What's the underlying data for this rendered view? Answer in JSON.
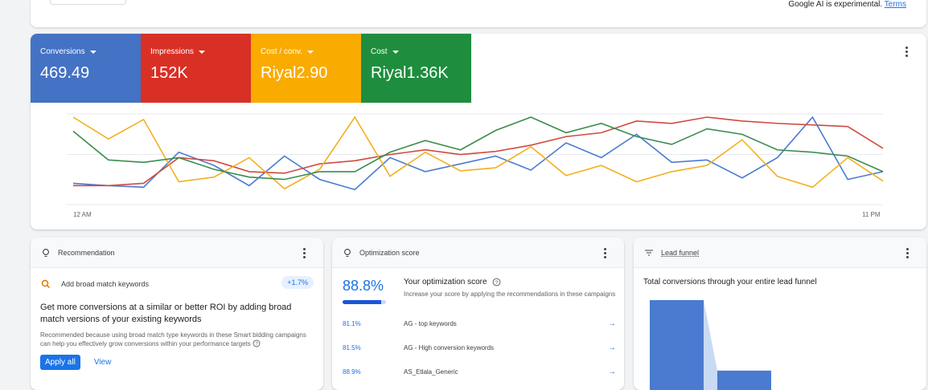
{
  "top": {
    "note": "Google AI is experimental.",
    "terms_link": "Terms"
  },
  "metrics": [
    {
      "label": "Conversions",
      "value": "469.49",
      "color": "#4472c4"
    },
    {
      "label": "Impressions",
      "value": "152K",
      "color": "#d93025"
    },
    {
      "label": "Cost / conv.",
      "value": "Riyal2.90",
      "color": "#f9ab00"
    },
    {
      "label": "Cost",
      "value": "Riyal1.36K",
      "color": "#1e8e3e"
    }
  ],
  "chart_data": {
    "type": "line",
    "x_start_label": "12 AM",
    "x_end_label": "11 PM",
    "x": [
      0,
      1,
      2,
      3,
      4,
      5,
      6,
      7,
      8,
      9,
      10,
      11,
      12,
      13,
      14,
      15,
      16,
      17,
      18,
      19,
      20,
      21,
      22,
      23
    ],
    "ylim": [
      0,
      1
    ],
    "grid": true,
    "series": [
      {
        "name": "Conversions",
        "color": "#4a7bd0",
        "values": [
          0.15,
          0.12,
          0.1,
          0.55,
          0.38,
          0.12,
          0.5,
          0.2,
          0.07,
          0.48,
          0.3,
          0.4,
          0.5,
          0.32,
          0.67,
          0.48,
          0.78,
          0.42,
          0.45,
          0.22,
          0.48,
          1.0,
          0.2,
          0.3
        ]
      },
      {
        "name": "Impressions",
        "color": "#d14b3e",
        "values": [
          0.12,
          0.12,
          0.15,
          0.48,
          0.44,
          0.3,
          0.28,
          0.4,
          0.44,
          0.52,
          0.58,
          0.52,
          0.56,
          0.64,
          0.75,
          0.8,
          0.95,
          0.92,
          1.0,
          0.95,
          0.92,
          0.9,
          0.88,
          0.6
        ]
      },
      {
        "name": "Cost / conv.",
        "color": "#f2b01e",
        "values": [
          1.0,
          0.72,
          0.97,
          0.17,
          0.23,
          0.48,
          0.08,
          0.33,
          1.0,
          0.24,
          0.55,
          0.31,
          0.35,
          0.62,
          0.25,
          0.38,
          0.17,
          0.3,
          0.38,
          0.71,
          0.24,
          0.1,
          0.48,
          0.18
        ]
      },
      {
        "name": "Cost",
        "color": "#3a8d4e",
        "values": [
          0.82,
          0.45,
          0.42,
          0.48,
          0.33,
          0.23,
          0.2,
          0.3,
          0.3,
          0.55,
          0.7,
          0.58,
          0.83,
          1.0,
          0.8,
          0.92,
          0.75,
          0.65,
          0.85,
          0.78,
          0.58,
          0.55,
          0.5,
          0.3
        ]
      }
    ]
  },
  "recommendation": {
    "header": "Recommendation",
    "item": "Add broad match keywords",
    "badge": "+1.7%",
    "title": "Get more conversions at a similar or better ROI by adding broad match versions of your existing keywords",
    "desc": "Recommended because using broad match type keywords in these Smart bidding campaigns can help you effectively grow conversions within your performance targets",
    "apply": "Apply all",
    "view": "View"
  },
  "optimization": {
    "header": "Optimization score",
    "score": "88.8%",
    "score_fraction": 0.888,
    "title": "Your optimization score",
    "subtitle": "Increase your score by applying the recommendations in these campaigns",
    "rows": [
      {
        "pct": "81.1%",
        "name": "AG - top keywords"
      },
      {
        "pct": "81.5%",
        "name": "AG - High conversion keywords"
      },
      {
        "pct": "88.9%",
        "name": "AS_Etlala_Generic"
      }
    ]
  },
  "funnel": {
    "header": "Lead funnel",
    "title": "Total conversions through your entire lead funnel",
    "stages": [
      1.0,
      0.28
    ]
  }
}
